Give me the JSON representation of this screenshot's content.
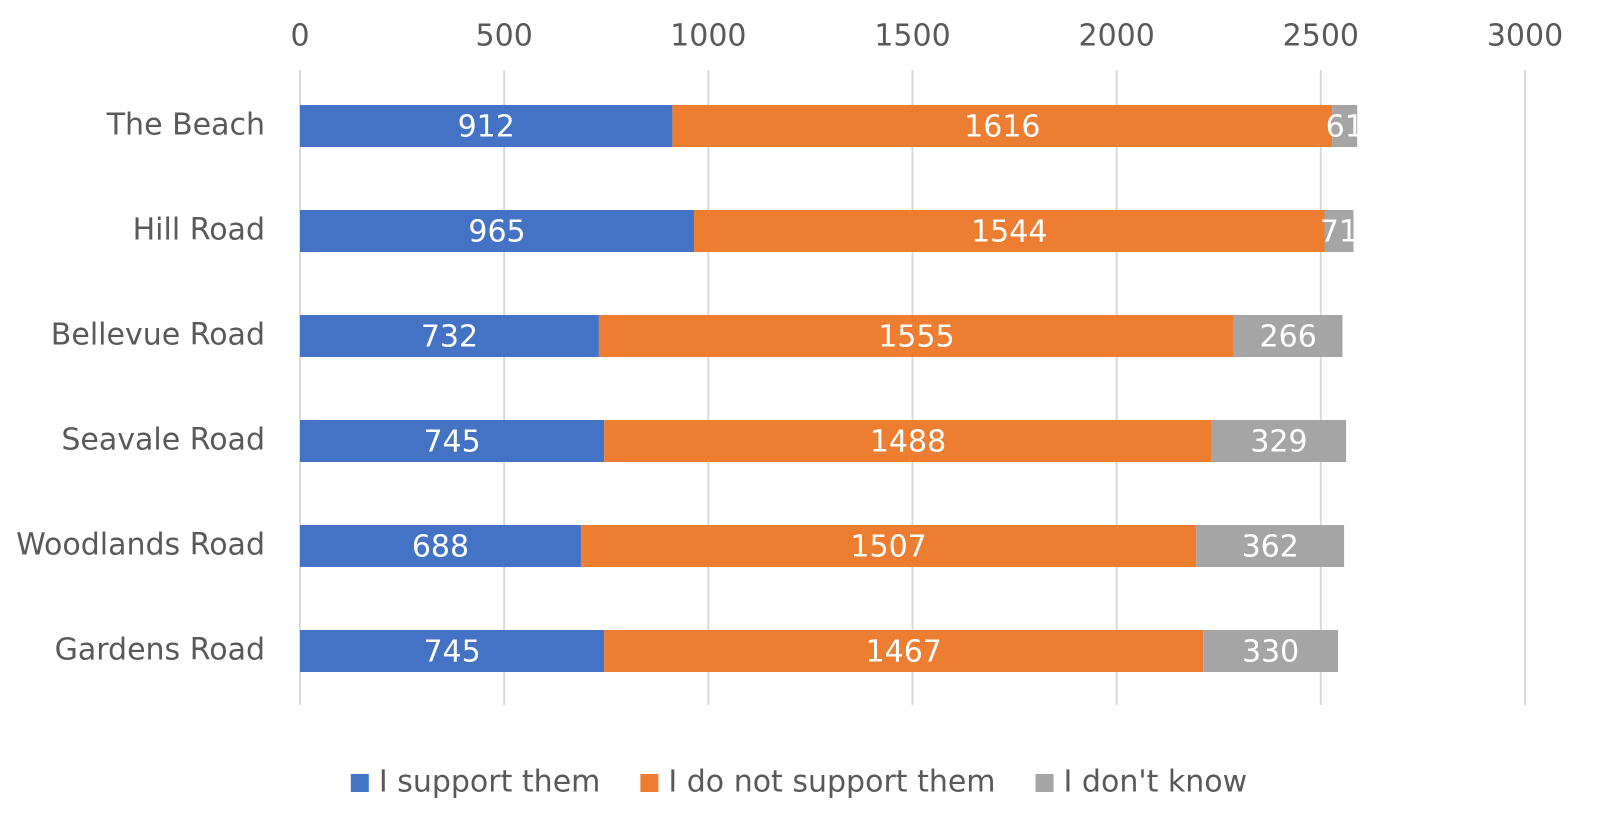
{
  "chart_data": {
    "type": "bar",
    "orientation": "horizontal",
    "stacked": true,
    "title": "",
    "xlabel": "",
    "ylabel": "",
    "xlim": [
      0,
      3000
    ],
    "x_ticks": [
      0,
      500,
      1000,
      1500,
      2000,
      2500,
      3000
    ],
    "x_tick_labels": [
      "0",
      "500",
      "1000",
      "1500",
      "2000",
      "2500",
      "3000"
    ],
    "x_axis_position": "top",
    "grid": true,
    "legend_position": "bottom",
    "categories": [
      "The Beach",
      "Hill Road",
      "Bellevue Road",
      "Seavale Road",
      "Woodlands Road",
      "Gardens Road"
    ],
    "series": [
      {
        "name": "I support them",
        "color": "#4472c4",
        "values": [
          912,
          965,
          732,
          745,
          688,
          745
        ]
      },
      {
        "name": "I do not support them",
        "color": "#ed7d31",
        "values": [
          1616,
          1544,
          1555,
          1488,
          1507,
          1467
        ]
      },
      {
        "name": "I don't know",
        "color": "#a5a5a5",
        "values": [
          61,
          71,
          266,
          329,
          362,
          330
        ]
      }
    ]
  }
}
